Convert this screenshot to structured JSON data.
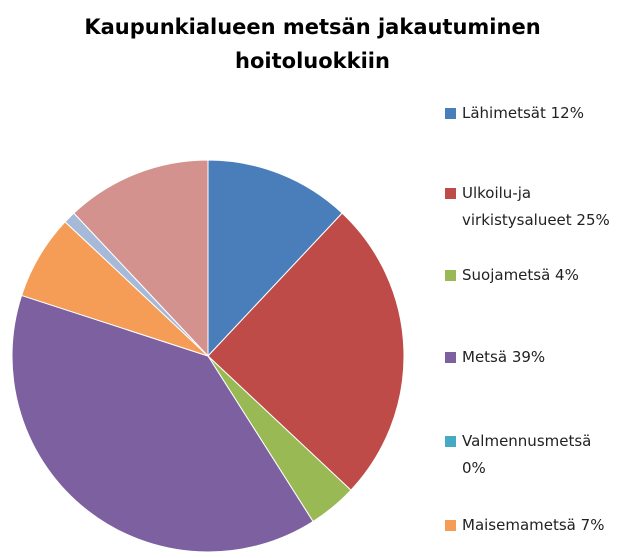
{
  "chart_data": {
    "type": "pie",
    "title": "Kaupunkialueen metsän jakautuminen hoitoluokkiin",
    "categories": [
      "Lähimetsät 12%",
      "Ulkoilu-ja virkistysalueet 25%",
      "Suojametsä 4%",
      "Metsä 39%",
      "Valmennusmetsä 0%",
      "Maisemametsä 7%",
      null,
      null
    ],
    "values": [
      12,
      25,
      4,
      39,
      0,
      7,
      1,
      12
    ],
    "colors": [
      "#4a7ebb",
      "#be4b48",
      "#98b954",
      "#7d60a0",
      "#46aac5",
      "#f59d56",
      "#a7b9d9",
      "#d4928f"
    ],
    "legend": "right"
  }
}
